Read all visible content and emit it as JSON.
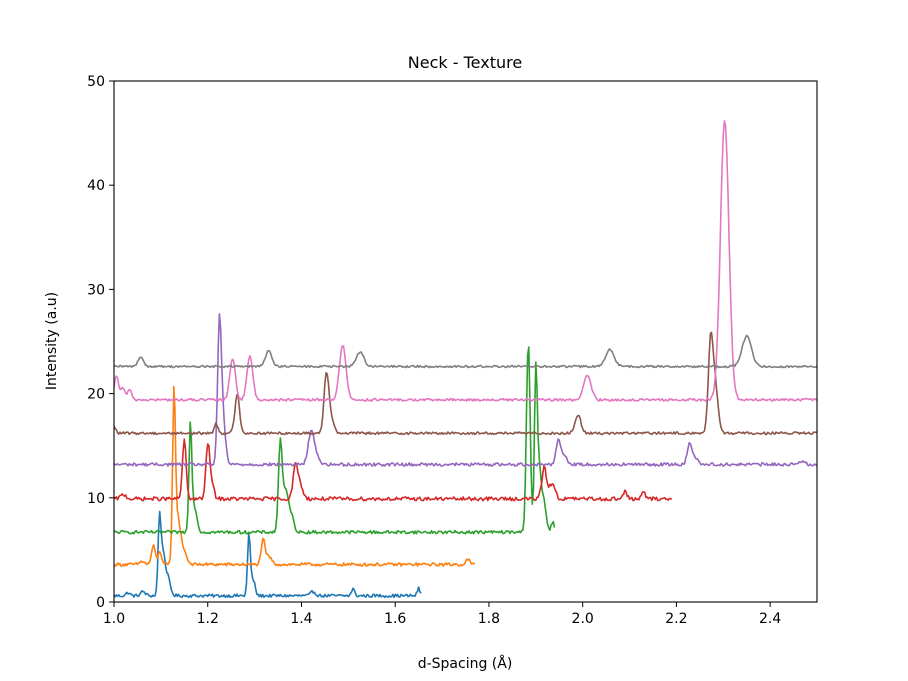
{
  "chart_data": {
    "type": "line",
    "title": "Neck - Texture",
    "xlabel": "d-Spacing (Å)",
    "ylabel": "Intensity (a.u)",
    "xlim": [
      1.0,
      2.5
    ],
    "ylim": [
      0,
      50
    ],
    "xticks": [
      "1.0",
      "1.2",
      "1.4",
      "1.6",
      "1.8",
      "2.0",
      "2.2",
      "2.4"
    ],
    "yticks": [
      "0",
      "10",
      "20",
      "30",
      "40",
      "50"
    ],
    "grid": false,
    "legend": "none",
    "series": [
      {
        "color": "#1f77b4",
        "x_range": [
          1.0,
          1.655
        ],
        "baseline": 0.6,
        "peaks": [
          [
            1.03,
            0.3,
            0.004
          ],
          [
            1.062,
            0.4,
            0.005
          ],
          [
            1.097,
            7.2,
            0.003
          ],
          [
            1.104,
            3.6,
            0.004
          ],
          [
            1.113,
            2.0,
            0.006
          ],
          [
            1.288,
            5.9,
            0.003
          ],
          [
            1.297,
            1.5,
            0.004
          ],
          [
            1.425,
            0.4,
            0.005
          ],
          [
            1.51,
            0.7,
            0.003
          ],
          [
            1.65,
            0.7,
            0.003
          ]
        ],
        "noise": 0.15
      },
      {
        "color": "#ff7f0e",
        "x_range": [
          1.0,
          1.77
        ],
        "baseline": 3.6,
        "peaks": [
          [
            1.06,
            0.3,
            0.005
          ],
          [
            1.084,
            1.8,
            0.004
          ],
          [
            1.098,
            1.2,
            0.004
          ],
          [
            1.128,
            16.3,
            0.003
          ],
          [
            1.136,
            4.0,
            0.005
          ],
          [
            1.147,
            1.5,
            0.007
          ],
          [
            1.318,
            2.3,
            0.004
          ],
          [
            1.33,
            0.8,
            0.006
          ],
          [
            1.755,
            0.5,
            0.004
          ]
        ],
        "noise": 0.15
      },
      {
        "color": "#2ca02c",
        "x_range": [
          1.0,
          1.94
        ],
        "baseline": 6.7,
        "peaks": [
          [
            1.163,
            10.4,
            0.003
          ],
          [
            1.172,
            2.4,
            0.005
          ],
          [
            1.355,
            8.8,
            0.004
          ],
          [
            1.366,
            3.6,
            0.005
          ],
          [
            1.377,
            1.8,
            0.006
          ],
          [
            1.884,
            18.3,
            0.004
          ],
          [
            1.9,
            14.9,
            0.003
          ],
          [
            1.907,
            6.0,
            0.004
          ],
          [
            1.917,
            3.0,
            0.005
          ],
          [
            1.936,
            1.0,
            0.003
          ]
        ],
        "noise": 0.15
      },
      {
        "color": "#d62728",
        "x_range": [
          1.0,
          2.19
        ],
        "baseline": 9.9,
        "peaks": [
          [
            1.02,
            0.4,
            0.006
          ],
          [
            1.15,
            5.6,
            0.004
          ],
          [
            1.2,
            5.0,
            0.004
          ],
          [
            1.208,
            1.5,
            0.005
          ],
          [
            1.387,
            3.0,
            0.005
          ],
          [
            1.397,
            1.3,
            0.006
          ],
          [
            1.918,
            3.0,
            0.005
          ],
          [
            1.935,
            1.5,
            0.006
          ],
          [
            2.09,
            0.7,
            0.004
          ],
          [
            2.13,
            0.6,
            0.004
          ]
        ],
        "noise": 0.18
      },
      {
        "color": "#9467bd",
        "x_range": [
          1.0,
          2.5
        ],
        "baseline": 13.2,
        "peaks": [
          [
            1.225,
            13.3,
            0.004
          ],
          [
            1.233,
            4.0,
            0.005
          ],
          [
            1.42,
            2.8,
            0.006
          ],
          [
            1.43,
            1.0,
            0.007
          ],
          [
            1.948,
            2.2,
            0.005
          ],
          [
            1.96,
            0.8,
            0.007
          ],
          [
            2.228,
            1.9,
            0.005
          ],
          [
            2.24,
            0.7,
            0.006
          ],
          [
            2.47,
            0.4,
            0.005
          ]
        ],
        "noise": 0.15
      },
      {
        "color": "#8c564b",
        "x_range": [
          1.0,
          2.5
        ],
        "baseline": 16.2,
        "peaks": [
          [
            1.0,
            0.6,
            0.004
          ],
          [
            1.218,
            0.9,
            0.004
          ],
          [
            1.263,
            3.7,
            0.005
          ],
          [
            1.453,
            5.6,
            0.005
          ],
          [
            1.463,
            1.5,
            0.006
          ],
          [
            1.99,
            1.8,
            0.006
          ],
          [
            2.273,
            8.5,
            0.005
          ],
          [
            2.283,
            4.5,
            0.006
          ]
        ],
        "noise": 0.12
      },
      {
        "color": "#e377c2",
        "x_range": [
          1.0,
          2.5
        ],
        "baseline": 19.4,
        "peaks": [
          [
            1.005,
            2.3,
            0.004
          ],
          [
            1.018,
            1.2,
            0.005
          ],
          [
            1.033,
            1.0,
            0.004
          ],
          [
            1.253,
            4.0,
            0.006
          ],
          [
            1.29,
            4.3,
            0.006
          ],
          [
            1.488,
            5.3,
            0.007
          ],
          [
            2.01,
            2.3,
            0.008
          ],
          [
            2.303,
            26.9,
            0.009
          ]
        ],
        "noise": 0.12
      },
      {
        "color": "#7f7f7f",
        "x_range": [
          1.0,
          2.5
        ],
        "baseline": 22.6,
        "peaks": [
          [
            1.057,
            0.9,
            0.006
          ],
          [
            1.33,
            1.5,
            0.007
          ],
          [
            1.525,
            1.4,
            0.008
          ],
          [
            2.058,
            1.6,
            0.009
          ],
          [
            2.35,
            2.9,
            0.01
          ]
        ],
        "noise": 0.1
      }
    ]
  }
}
